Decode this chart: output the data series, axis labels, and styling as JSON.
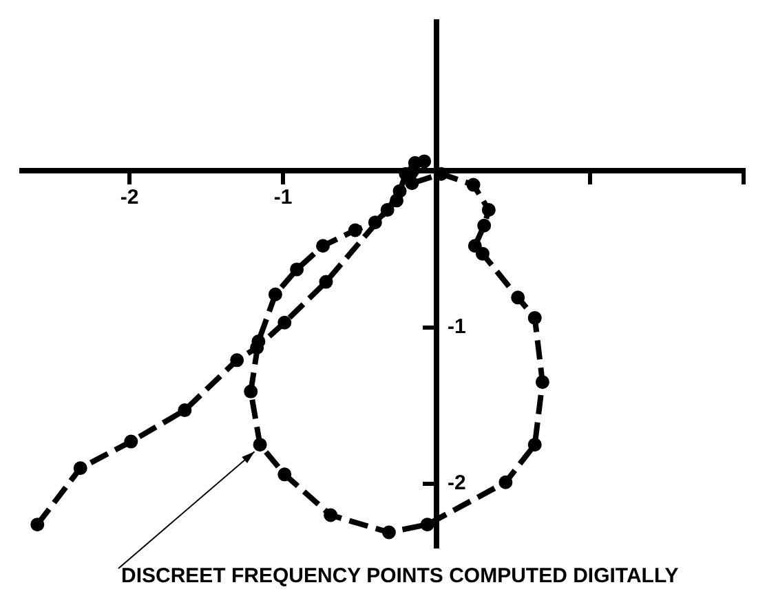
{
  "chart_data": {
    "type": "line",
    "color": "#000000",
    "marker": "circle",
    "line_style": "dashed",
    "x": [
      -2.6,
      -2.32,
      -1.99,
      -1.64,
      -1.3,
      -1.17,
      -0.99,
      -0.72,
      -0.32,
      -0.24,
      -0.2,
      -0.14,
      -0.08,
      -0.26,
      -0.4,
      -0.53,
      -0.74,
      -0.91,
      -1.05,
      -1.16,
      -1.21,
      -1.15,
      -0.99,
      -0.69,
      -0.31,
      -0.06,
      0.45,
      0.64,
      0.69,
      0.64,
      0.53,
      0.3,
      0.25,
      0.31,
      0.34,
      0.24,
      0.03,
      -0.16
    ],
    "values": [
      -2.26,
      -1.9,
      -1.73,
      -1.53,
      -1.21,
      -1.13,
      -0.97,
      -0.71,
      -0.25,
      -0.13,
      -0.02,
      0.05,
      0.06,
      -0.19,
      -0.33,
      -0.38,
      -0.48,
      -0.63,
      -0.79,
      -1.09,
      -1.41,
      -1.75,
      -1.94,
      -2.2,
      -2.31,
      -2.26,
      -1.99,
      -1.75,
      -1.35,
      -0.94,
      -0.81,
      -0.53,
      -0.48,
      -0.35,
      -0.25,
      -0.09,
      -0.02,
      -0.08
    ],
    "xlim": [
      -2.7,
      2
    ],
    "ylim": [
      -2.4,
      0.95
    ],
    "xticks": [
      -2,
      -1,
      {
        "value": 1,
        "label": null
      },
      {
        "value": 2,
        "label": null
      }
    ],
    "yticks": [
      -2,
      -1
    ],
    "annotations": [
      {
        "text": "DISCREET FREQUENCY POINTS COMPUTED DIGITALLY",
        "x": -1.15,
        "y": -1.75
      }
    ]
  }
}
